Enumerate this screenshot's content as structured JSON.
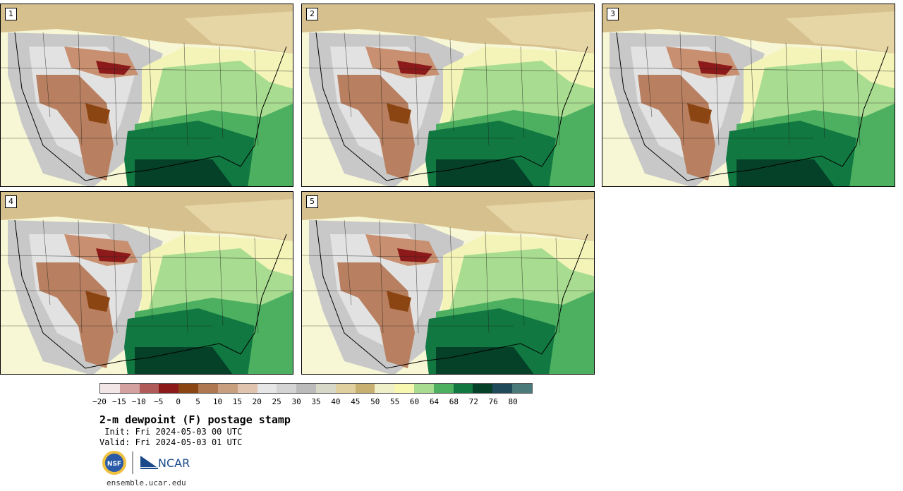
{
  "panels": [
    {
      "label": "1"
    },
    {
      "label": "2"
    },
    {
      "label": "3"
    },
    {
      "label": "4"
    },
    {
      "label": "5"
    }
  ],
  "colorbar": {
    "ticks": [
      "−20",
      "−15",
      "−10",
      "−5",
      "0",
      "5",
      "10",
      "15",
      "20",
      "25",
      "30",
      "35",
      "40",
      "45",
      "50",
      "55",
      "60",
      "64",
      "68",
      "72",
      "76",
      "80"
    ],
    "colors": [
      "#f2e6e6",
      "#d4a0a0",
      "#b05a5a",
      "#8c1a1a",
      "#8b4513",
      "#b07850",
      "#c8a080",
      "#e0c4b0",
      "#e6e6e6",
      "#d4d4d4",
      "#bbbbbb",
      "#d8d8c8",
      "#e0d0a0",
      "#c8b070",
      "#f0f0c8",
      "#f8f8b0",
      "#a8dc90",
      "#4cb060",
      "#107840",
      "#054028",
      "#1e4a5a",
      "#4a7a7a"
    ]
  },
  "title": "2-m dewpoint (F) postage stamp",
  "init": " Init: Fri 2024-05-03 00 UTC",
  "valid": "Valid: Fri 2024-05-03 01 UTC",
  "logo_text": "NCAR",
  "nsf_text": "NSF",
  "url": "ensemble.ucar.edu"
}
